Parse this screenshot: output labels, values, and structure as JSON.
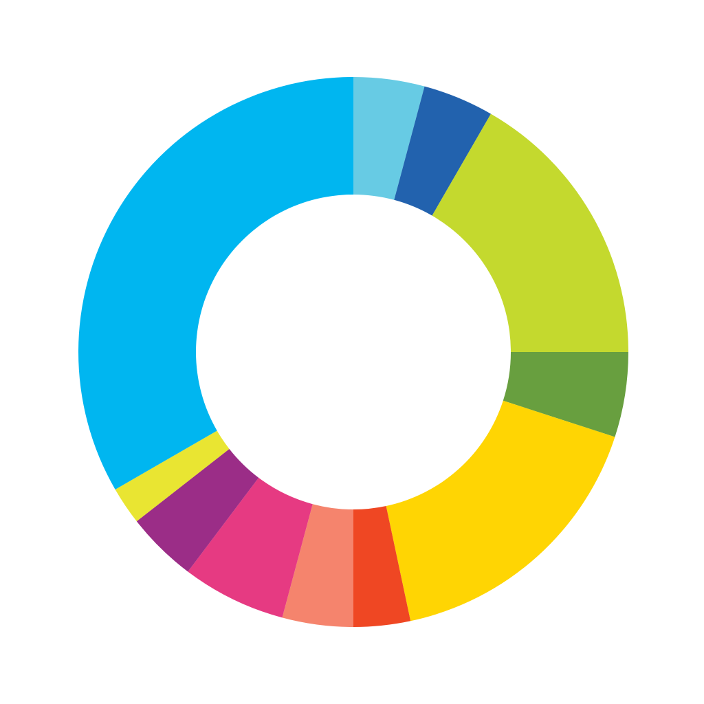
{
  "chart_data": {
    "type": "pie",
    "variant": "donut",
    "title": "",
    "start": "top",
    "direction": "clockwise",
    "legend": "none",
    "values": [
      15,
      15,
      60,
      18,
      60,
      12,
      15,
      22,
      15,
      8,
      120
    ],
    "colors": [
      "#67CBE4",
      "#2262AE",
      "#C4D92E",
      "#689F3F",
      "#FFD503",
      "#EF4723",
      "#F5846D",
      "#E63A82",
      "#9B2D87",
      "#E9E532",
      "#00B6F0"
    ]
  }
}
